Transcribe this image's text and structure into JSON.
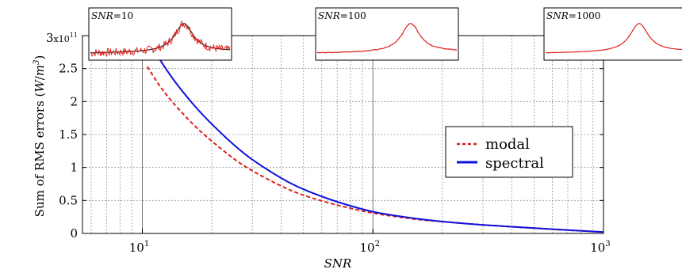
{
  "chart_data": {
    "type": "line",
    "xlabel": "SNR",
    "ylabel": "Sum of RMS errors (W/m³)",
    "ylabel_parts": {
      "main": "Sum of RMS errors (",
      "unit_w": "W",
      "unit_slash": "/",
      "unit_m": "m",
      "unit_exp": "3",
      "close": ")"
    },
    "x_scale": "log",
    "xlim": [
      5.5,
      1000
    ],
    "ylim": [
      0,
      3
    ],
    "y_multiplier": "x10",
    "y_multiplier_exp": "11",
    "x_ticks": [
      {
        "base": "10",
        "exp": "1",
        "value": 10
      },
      {
        "base": "10",
        "exp": "2",
        "value": 100
      },
      {
        "base": "10",
        "exp": "3",
        "value": 1000
      }
    ],
    "y_ticks": [
      "0",
      "0.5",
      "1",
      "1.5",
      "2",
      "2.5",
      "3"
    ],
    "grid": true,
    "legend_position": "right",
    "series": [
      {
        "name": "modal",
        "color": "#e0201b",
        "style": "dashed",
        "x": [
          10.5,
          12,
          14,
          17,
          20,
          25,
          30,
          40,
          50,
          70,
          100,
          150,
          200,
          300,
          500,
          1000
        ],
        "y": [
          2.53,
          2.22,
          1.93,
          1.62,
          1.4,
          1.13,
          0.95,
          0.72,
          0.58,
          0.43,
          0.31,
          0.22,
          0.18,
          0.13,
          0.08,
          0.02
        ]
      },
      {
        "name": "spectral",
        "color": "#1010dd",
        "style": "solid",
        "x": [
          11,
          12,
          14,
          17,
          20,
          25,
          30,
          40,
          50,
          70,
          100,
          150,
          200,
          300,
          500,
          1000
        ],
        "y": [
          2.85,
          2.62,
          2.28,
          1.92,
          1.66,
          1.34,
          1.12,
          0.84,
          0.67,
          0.48,
          0.33,
          0.23,
          0.18,
          0.13,
          0.08,
          0.02
        ]
      }
    ],
    "insets": [
      {
        "label_prefix": "SNR",
        "label_value": "=10",
        "noise": "high"
      },
      {
        "label_prefix": "SNR",
        "label_value": "=100",
        "noise": "low"
      },
      {
        "label_prefix": "SNR",
        "label_value": "=1000",
        "noise": "none"
      }
    ],
    "inset_colors": {
      "signal": "#e0201b",
      "fit": "#222222"
    }
  }
}
